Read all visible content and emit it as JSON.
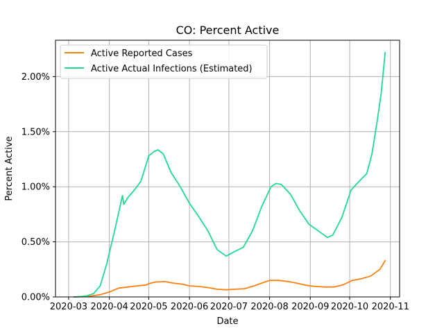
{
  "chart_data": {
    "type": "line",
    "title": "CO: Percent Active",
    "xlabel": "Date",
    "ylabel": "Percent Active",
    "x_axis": {
      "type": "date",
      "range": [
        "2020-02-20",
        "2020-11-08"
      ],
      "ticks": [
        "2020-03-01",
        "2020-04-01",
        "2020-05-01",
        "2020-06-01",
        "2020-07-01",
        "2020-08-01",
        "2020-09-01",
        "2020-10-01",
        "2020-11-01"
      ],
      "tick_labels": [
        "2020-03",
        "2020-04",
        "2020-05",
        "2020-06",
        "2020-07",
        "2020-08",
        "2020-09",
        "2020-10",
        "2020-11"
      ]
    },
    "y_axis": {
      "range": [
        0,
        2.33
      ],
      "unit": "percent",
      "ticks": [
        0,
        0.5,
        1.0,
        1.5,
        2.0
      ],
      "tick_labels": [
        "0.00%",
        "0.50%",
        "1.00%",
        "1.50%",
        "2.00%"
      ]
    },
    "grid": true,
    "legend_position": "top-left",
    "series": [
      {
        "name": "Active Reported Cases",
        "color": "#ff7f0e",
        "points": [
          [
            "2020-03-05",
            0.0
          ],
          [
            "2020-03-15",
            0.003
          ],
          [
            "2020-03-25",
            0.02
          ],
          [
            "2020-04-01",
            0.045
          ],
          [
            "2020-04-08",
            0.08
          ],
          [
            "2020-04-15",
            0.09
          ],
          [
            "2020-04-22",
            0.1
          ],
          [
            "2020-04-29",
            0.108
          ],
          [
            "2020-05-01",
            0.12
          ],
          [
            "2020-05-06",
            0.135
          ],
          [
            "2020-05-13",
            0.14
          ],
          [
            "2020-05-20",
            0.125
          ],
          [
            "2020-05-27",
            0.115
          ],
          [
            "2020-06-01",
            0.1
          ],
          [
            "2020-06-08",
            0.095
          ],
          [
            "2020-06-15",
            0.085
          ],
          [
            "2020-06-22",
            0.07
          ],
          [
            "2020-06-29",
            0.065
          ],
          [
            "2020-07-06",
            0.07
          ],
          [
            "2020-07-13",
            0.075
          ],
          [
            "2020-07-20",
            0.1
          ],
          [
            "2020-07-27",
            0.13
          ],
          [
            "2020-08-01",
            0.15
          ],
          [
            "2020-08-08",
            0.15
          ],
          [
            "2020-08-15",
            0.14
          ],
          [
            "2020-08-22",
            0.125
          ],
          [
            "2020-08-29",
            0.105
          ],
          [
            "2020-09-05",
            0.095
          ],
          [
            "2020-09-12",
            0.09
          ],
          [
            "2020-09-19",
            0.09
          ],
          [
            "2020-09-26",
            0.11
          ],
          [
            "2020-10-03",
            0.15
          ],
          [
            "2020-10-10",
            0.165
          ],
          [
            "2020-10-17",
            0.19
          ],
          [
            "2020-10-24",
            0.25
          ],
          [
            "2020-10-28",
            0.33
          ]
        ]
      },
      {
        "name": "Active Actual Infections (Estimated)",
        "color": "#1ddb93",
        "points": [
          [
            "2020-03-05",
            0.0
          ],
          [
            "2020-03-10",
            0.003
          ],
          [
            "2020-03-15",
            0.01
          ],
          [
            "2020-03-20",
            0.03
          ],
          [
            "2020-03-25",
            0.1
          ],
          [
            "2020-03-30",
            0.3
          ],
          [
            "2020-04-05",
            0.6
          ],
          [
            "2020-04-11",
            0.92
          ],
          [
            "2020-04-12",
            0.84
          ],
          [
            "2020-04-15",
            0.9
          ],
          [
            "2020-04-20",
            0.97
          ],
          [
            "2020-04-25",
            1.05
          ],
          [
            "2020-05-01",
            1.28
          ],
          [
            "2020-05-05",
            1.32
          ],
          [
            "2020-05-08",
            1.335
          ],
          [
            "2020-05-12",
            1.3
          ],
          [
            "2020-05-18",
            1.13
          ],
          [
            "2020-05-25",
            1.0
          ],
          [
            "2020-06-01",
            0.85
          ],
          [
            "2020-06-08",
            0.73
          ],
          [
            "2020-06-15",
            0.6
          ],
          [
            "2020-06-22",
            0.43
          ],
          [
            "2020-06-29",
            0.37
          ],
          [
            "2020-07-05",
            0.41
          ],
          [
            "2020-07-12",
            0.45
          ],
          [
            "2020-07-19",
            0.6
          ],
          [
            "2020-07-26",
            0.82
          ],
          [
            "2020-08-02",
            1.0
          ],
          [
            "2020-08-06",
            1.03
          ],
          [
            "2020-08-10",
            1.02
          ],
          [
            "2020-08-17",
            0.93
          ],
          [
            "2020-08-24",
            0.78
          ],
          [
            "2020-08-31",
            0.66
          ],
          [
            "2020-09-07",
            0.6
          ],
          [
            "2020-09-14",
            0.54
          ],
          [
            "2020-09-18",
            0.56
          ],
          [
            "2020-09-25",
            0.72
          ],
          [
            "2020-10-02",
            0.97
          ],
          [
            "2020-10-09",
            1.06
          ],
          [
            "2020-10-14",
            1.12
          ],
          [
            "2020-10-18",
            1.3
          ],
          [
            "2020-10-22",
            1.6
          ],
          [
            "2020-10-25",
            1.85
          ],
          [
            "2020-10-28",
            2.22
          ]
        ]
      }
    ]
  }
}
